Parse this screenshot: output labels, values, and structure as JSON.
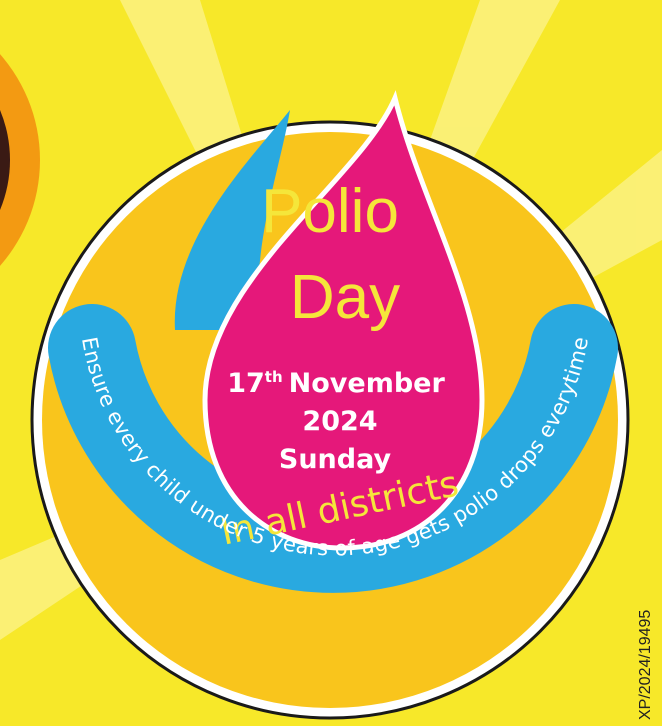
{
  "poster": {
    "title_line1": "Polio",
    "title_line2": "Day",
    "date_day": "17",
    "date_suffix": "th",
    "date_month": "November",
    "year": "2024",
    "weekday": "Sunday",
    "districts": "In all districts",
    "slogan": "Ensure every child under 5 years of age gets polio drops everytime",
    "code": "XP/2024/19495"
  }
}
